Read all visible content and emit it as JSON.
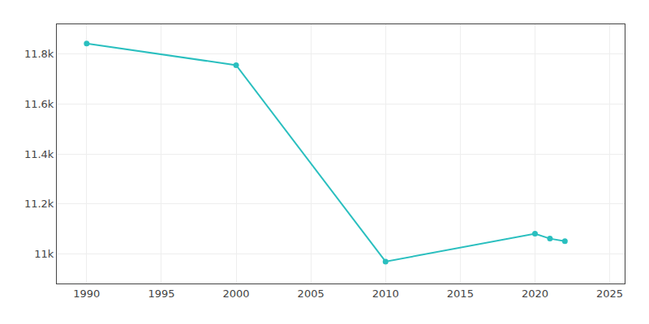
{
  "chart_data": {
    "type": "line",
    "x": [
      1990,
      2000,
      2010,
      2020,
      2021,
      2022
    ],
    "values": [
      11843,
      11756,
      10968,
      11080,
      11060,
      11050
    ],
    "color": "#2abfbf",
    "marker": "circle",
    "xlim": [
      1988,
      2026
    ],
    "ylim": [
      10880,
      11920
    ],
    "xticks": [
      1990,
      1995,
      2000,
      2005,
      2010,
      2015,
      2020,
      2025
    ],
    "yticks": [
      {
        "value": 11000,
        "label": "11k"
      },
      {
        "value": 11200,
        "label": "11.2k"
      },
      {
        "value": 11400,
        "label": "11.4k"
      },
      {
        "value": 11600,
        "label": "11.6k"
      },
      {
        "value": 11800,
        "label": "11.8k"
      }
    ],
    "grid": true
  }
}
